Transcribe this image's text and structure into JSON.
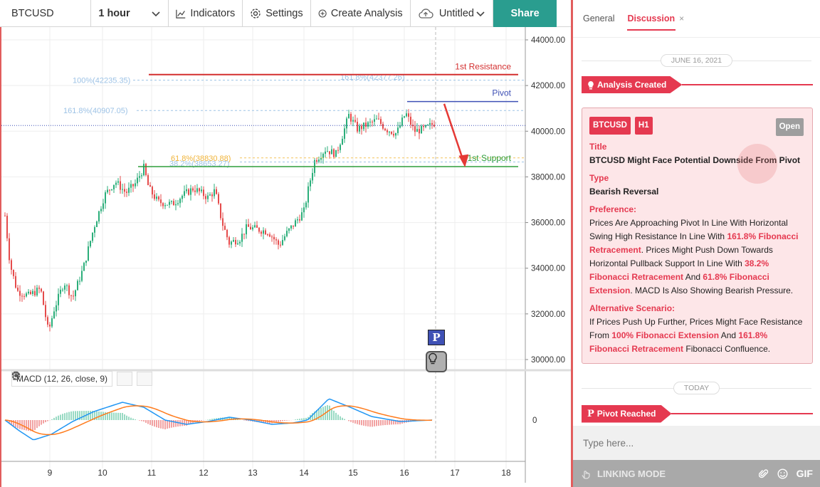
{
  "toolbar": {
    "symbol": "BTCUSD",
    "interval": "1 hour",
    "indicators": "Indicators",
    "settings": "Settings",
    "create_analysis": "Create Analysis",
    "untitled": "Untitled",
    "share": "Share"
  },
  "chart": {
    "price_axis": [
      "44000.00",
      "42000.00",
      "40000.00",
      "38000.00",
      "36000.00",
      "34000.00",
      "32000.00",
      "30000.00"
    ],
    "time_axis": [
      "9",
      "10",
      "11",
      "12",
      "13",
      "14",
      "15",
      "16",
      "17",
      "18"
    ],
    "macd_zero_label": "0",
    "macd_legend": "MACD (12, 26, close, 9)",
    "labels": {
      "resistance": "1st Resistance",
      "pivot": "Pivot",
      "support": "1st Support",
      "fib_100": "100%(42235.35)",
      "fib_1618_top": "161.8%(42377.26)",
      "fib_1618": "161.8%(40907.05)",
      "fib_618": "61.8%(38830.88)",
      "fib_382": "38.2%(38653.27)"
    },
    "marker_p": "P",
    "colors": {
      "up": "#2bae7a",
      "down": "#e54b4b",
      "resistance": "#d32f2f",
      "pivot": "#3f51b5",
      "support": "#2e9d3a",
      "macd": "#2196f3",
      "signal": "#ff7b1c"
    }
  },
  "panel": {
    "tab_general": "General",
    "tab_discussion": "Discussion",
    "tab_close": "×",
    "date1": "JUNE 16, 2021",
    "event1": "Analysis Created",
    "card": {
      "symbol": "BTCUSD",
      "timeframe": "H1",
      "status": "Open",
      "title_h": "Title",
      "title": "BTCUSD Might Face Potential Downside From Pivot",
      "type_h": "Type",
      "type": "Bearish Reversal",
      "pref_h": "Preference:",
      "pref_1": "Prices Are Approaching Pivot In Line With Horizontal Swing High Resistance In Line With ",
      "pref_hl1": "161.8% Fibonacci Retracement",
      "pref_2": ". Prices Might Push Down Towards Horizontal Pullback Support In Line With ",
      "pref_hl2": "38.2% Fibonacci Retracement",
      "pref_3": " And ",
      "pref_hl3": "61.8% Fibonacci Extension",
      "pref_4": ". MACD Is Also Showing Bearish Pressure.",
      "alt_h": "Alternative Scenario:",
      "alt_1": "If Prices Push Up Further, Prices Might Face Resistance From ",
      "alt_hl1": "100% Fibonacci Extension",
      "alt_2": " And ",
      "alt_hl2": "161.8% Fibonacci Retracement",
      "alt_3": " Fibonacci Confluence."
    },
    "date2": "TODAY",
    "event2": "Pivot Reached",
    "input_placeholder": "Type here...",
    "linking_mode": "LINKING MODE",
    "gif": "GIF"
  }
}
